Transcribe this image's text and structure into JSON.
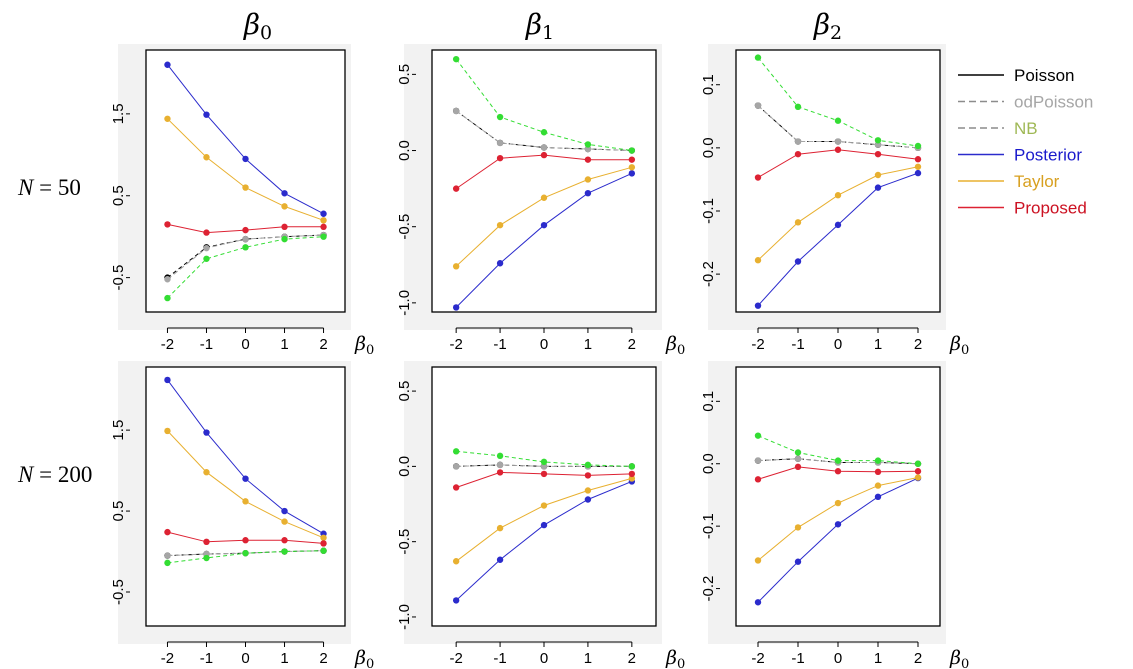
{
  "column_titles": [
    {
      "base": "β",
      "sub": "0"
    },
    {
      "base": "β",
      "sub": "1"
    },
    {
      "base": "β",
      "sub": "2"
    }
  ],
  "row_labels": [
    {
      "var": "N",
      "value": "50"
    },
    {
      "var": "N",
      "value": "200"
    }
  ],
  "colors": {
    "Poisson": "#000000",
    "odPoisson": "#a6a6a6",
    "NB": "#33dd33",
    "Posterior": "#2b2bcc",
    "Taylor": "#e8b030",
    "Proposed": "#dd2233"
  },
  "legend": {
    "placement": "right",
    "entries": [
      {
        "label": "Poisson",
        "line_color": "#000000",
        "text_color": "#000000",
        "dashed": false
      },
      {
        "label": "odPoisson",
        "line_color": "#8c8c8c",
        "text_color": "#a6a6a6",
        "dashed": true
      },
      {
        "label": "NB",
        "line_color": "#8c8c8c",
        "text_color": "#9fb855",
        "dashed": true
      },
      {
        "label": "Posterior",
        "line_color": "#2b2bcc",
        "text_color": "#1a1acc",
        "dashed": false
      },
      {
        "label": "Taylor",
        "line_color": "#e8b030",
        "text_color": "#d8a020",
        "dashed": false
      },
      {
        "label": "Proposed",
        "line_color": "#dd2233",
        "text_color": "#cc1122",
        "dashed": false
      }
    ]
  },
  "chart_data": [
    {
      "type": "line",
      "row": 0,
      "col": 0,
      "xlabel": {
        "base": "β",
        "sub": "0"
      },
      "x": [
        -2,
        -1,
        0,
        1,
        2
      ],
      "xticks": [
        -2,
        -1,
        0,
        1,
        2
      ],
      "xtick_labels": [
        "-2",
        "-1",
        "0",
        "1",
        "2"
      ],
      "xlim": [
        -2.55,
        2.55
      ],
      "ylim": [
        -0.92,
        2.28
      ],
      "yticks": [
        -0.5,
        0.5,
        1.5
      ],
      "ytick_labels": [
        "-0.5",
        "0.5",
        "1.5"
      ],
      "series": [
        {
          "name": "Poisson",
          "values": [
            -0.5,
            -0.13,
            -0.03,
            0.0,
            0.02
          ]
        },
        {
          "name": "odPoisson",
          "values": [
            -0.52,
            -0.14,
            -0.03,
            0.0,
            0.02
          ]
        },
        {
          "name": "NB",
          "values": [
            -0.75,
            -0.27,
            -0.13,
            -0.03,
            0.0
          ]
        },
        {
          "name": "Posterior",
          "values": [
            2.1,
            1.49,
            0.95,
            0.53,
            0.28
          ]
        },
        {
          "name": "Taylor",
          "values": [
            1.44,
            0.97,
            0.6,
            0.37,
            0.2
          ]
        },
        {
          "name": "Proposed",
          "values": [
            0.15,
            0.05,
            0.08,
            0.12,
            0.12
          ]
        }
      ]
    },
    {
      "type": "line",
      "row": 0,
      "col": 1,
      "xlabel": {
        "base": "β",
        "sub": "0"
      },
      "x": [
        -2,
        -1,
        0,
        1,
        2
      ],
      "xticks": [
        -2,
        -1,
        0,
        1,
        2
      ],
      "xtick_labels": [
        "-2",
        "-1",
        "0",
        "1",
        "2"
      ],
      "xlim": [
        -2.55,
        2.55
      ],
      "ylim": [
        -1.06,
        0.66
      ],
      "yticks": [
        -1.0,
        -0.5,
        0.0,
        0.5
      ],
      "ytick_labels": [
        "-1.0",
        "-0.5",
        "0.0",
        "0.5"
      ],
      "series": [
        {
          "name": "Poisson",
          "values": [
            0.26,
            0.05,
            0.02,
            0.01,
            0.0
          ]
        },
        {
          "name": "odPoisson",
          "values": [
            0.26,
            0.05,
            0.02,
            0.01,
            0.0
          ]
        },
        {
          "name": "NB",
          "values": [
            0.6,
            0.22,
            0.12,
            0.04,
            0.0
          ]
        },
        {
          "name": "Posterior",
          "values": [
            -1.03,
            -0.74,
            -0.49,
            -0.28,
            -0.15
          ]
        },
        {
          "name": "Taylor",
          "values": [
            -0.76,
            -0.49,
            -0.31,
            -0.19,
            -0.11
          ]
        },
        {
          "name": "Proposed",
          "values": [
            -0.25,
            -0.05,
            -0.03,
            -0.06,
            -0.06
          ]
        }
      ]
    },
    {
      "type": "line",
      "row": 0,
      "col": 2,
      "xlabel": {
        "base": "β",
        "sub": "0"
      },
      "x": [
        -2,
        -1,
        0,
        1,
        2
      ],
      "xticks": [
        -2,
        -1,
        0,
        1,
        2
      ],
      "xtick_labels": [
        "-2",
        "-1",
        "0",
        "1",
        "2"
      ],
      "xlim": [
        -2.55,
        2.55
      ],
      "ylim": [
        -0.26,
        0.155
      ],
      "yticks": [
        -0.2,
        -0.1,
        0.0,
        0.1
      ],
      "ytick_labels": [
        "-0.2",
        "-0.1",
        "0.0",
        "0.1"
      ],
      "series": [
        {
          "name": "Poisson",
          "values": [
            0.067,
            0.01,
            0.01,
            0.005,
            0.0
          ]
        },
        {
          "name": "odPoisson",
          "values": [
            0.067,
            0.01,
            0.01,
            0.005,
            0.0
          ]
        },
        {
          "name": "NB",
          "values": [
            0.143,
            0.065,
            0.043,
            0.012,
            0.003
          ]
        },
        {
          "name": "Posterior",
          "values": [
            -0.25,
            -0.18,
            -0.122,
            -0.063,
            -0.04
          ]
        },
        {
          "name": "Taylor",
          "values": [
            -0.178,
            -0.118,
            -0.075,
            -0.043,
            -0.03
          ]
        },
        {
          "name": "Proposed",
          "values": [
            -0.047,
            -0.01,
            -0.003,
            -0.01,
            -0.018
          ]
        }
      ]
    },
    {
      "type": "line",
      "row": 1,
      "col": 0,
      "xlabel": {
        "base": "β",
        "sub": "0"
      },
      "x": [
        -2,
        -1,
        0,
        1,
        2
      ],
      "xticks": [
        -2,
        -1,
        0,
        1,
        2
      ],
      "xtick_labels": [
        "-2",
        "-1",
        "0",
        "1",
        "2"
      ],
      "xlim": [
        -2.55,
        2.55
      ],
      "ylim": [
        -0.92,
        2.28
      ],
      "yticks": [
        -0.5,
        0.5,
        1.5
      ],
      "ytick_labels": [
        "-0.5",
        "0.5",
        "1.5"
      ],
      "series": [
        {
          "name": "Poisson",
          "values": [
            -0.05,
            -0.03,
            -0.02,
            0.0,
            0.01
          ]
        },
        {
          "name": "odPoisson",
          "values": [
            -0.05,
            -0.03,
            -0.02,
            0.0,
            0.01
          ]
        },
        {
          "name": "NB",
          "values": [
            -0.14,
            -0.08,
            -0.02,
            0.0,
            0.01
          ]
        },
        {
          "name": "Posterior",
          "values": [
            2.12,
            1.47,
            0.9,
            0.5,
            0.22
          ]
        },
        {
          "name": "Taylor",
          "values": [
            1.49,
            0.98,
            0.62,
            0.37,
            0.17
          ]
        },
        {
          "name": "Proposed",
          "values": [
            0.24,
            0.12,
            0.14,
            0.14,
            0.1
          ]
        }
      ]
    },
    {
      "type": "line",
      "row": 1,
      "col": 1,
      "xlabel": {
        "base": "β",
        "sub": "0"
      },
      "x": [
        -2,
        -1,
        0,
        1,
        2
      ],
      "xticks": [
        -2,
        -1,
        0,
        1,
        2
      ],
      "xtick_labels": [
        "-2",
        "-1",
        "0",
        "1",
        "2"
      ],
      "xlim": [
        -2.55,
        2.55
      ],
      "ylim": [
        -1.06,
        0.66
      ],
      "yticks": [
        -1.0,
        -0.5,
        0.0,
        0.5
      ],
      "ytick_labels": [
        "-1.0",
        "-0.5",
        "0.0",
        "0.5"
      ],
      "series": [
        {
          "name": "Poisson",
          "values": [
            0.0,
            0.01,
            0.0,
            0.0,
            0.0
          ]
        },
        {
          "name": "odPoisson",
          "values": [
            0.0,
            0.01,
            0.0,
            0.0,
            0.0
          ]
        },
        {
          "name": "NB",
          "values": [
            0.1,
            0.07,
            0.03,
            0.01,
            0.0
          ]
        },
        {
          "name": "Posterior",
          "values": [
            -0.89,
            -0.62,
            -0.39,
            -0.22,
            -0.1
          ]
        },
        {
          "name": "Taylor",
          "values": [
            -0.63,
            -0.41,
            -0.26,
            -0.16,
            -0.08
          ]
        },
        {
          "name": "Proposed",
          "values": [
            -0.14,
            -0.04,
            -0.05,
            -0.06,
            -0.05
          ]
        }
      ]
    },
    {
      "type": "line",
      "row": 1,
      "col": 2,
      "xlabel": {
        "base": "β",
        "sub": "0"
      },
      "x": [
        -2,
        -1,
        0,
        1,
        2
      ],
      "xticks": [
        -2,
        -1,
        0,
        1,
        2
      ],
      "xtick_labels": [
        "-2",
        "-1",
        "0",
        "1",
        "2"
      ],
      "xlim": [
        -2.55,
        2.55
      ],
      "ylim": [
        -0.26,
        0.155
      ],
      "yticks": [
        -0.2,
        -0.1,
        0.0,
        0.1
      ],
      "ytick_labels": [
        "-0.2",
        "-0.1",
        "0.0",
        "0.1"
      ],
      "series": [
        {
          "name": "Poisson",
          "values": [
            0.005,
            0.008,
            0.002,
            0.002,
            0.0
          ]
        },
        {
          "name": "odPoisson",
          "values": [
            0.005,
            0.008,
            0.002,
            0.002,
            0.0
          ]
        },
        {
          "name": "NB",
          "values": [
            0.045,
            0.018,
            0.005,
            0.005,
            0.0
          ]
        },
        {
          "name": "Posterior",
          "values": [
            -0.222,
            -0.157,
            -0.097,
            -0.053,
            -0.023
          ]
        },
        {
          "name": "Taylor",
          "values": [
            -0.155,
            -0.102,
            -0.063,
            -0.035,
            -0.022
          ]
        },
        {
          "name": "Proposed",
          "values": [
            -0.025,
            -0.005,
            -0.012,
            -0.013,
            -0.012
          ]
        }
      ]
    }
  ]
}
